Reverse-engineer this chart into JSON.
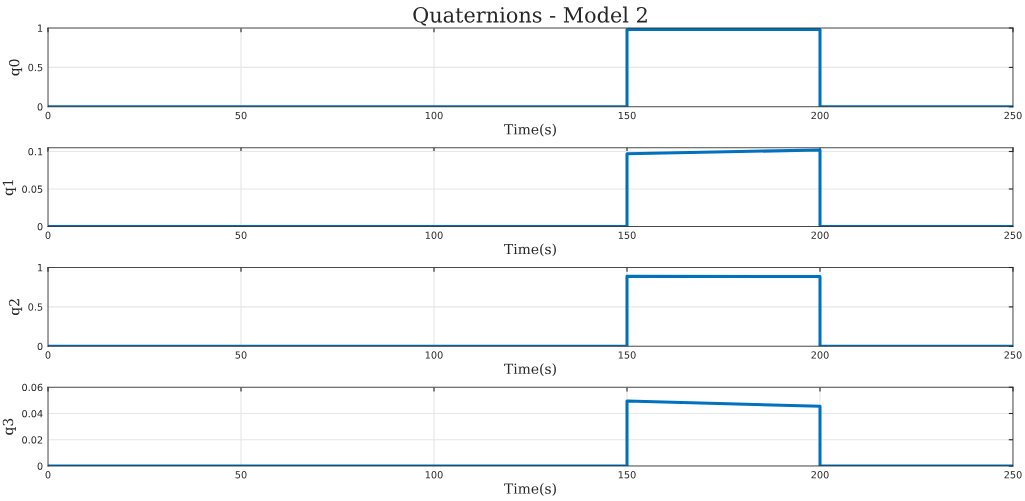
{
  "chart_data": [
    {
      "type": "line",
      "title": "Quaternions - Model 2",
      "xlabel": "Time(s)",
      "ylabel": "q0",
      "x": [
        0,
        150,
        150,
        200,
        200,
        250
      ],
      "series": [
        {
          "color": "#0072bd",
          "values": [
            0,
            0,
            0.98,
            0.98,
            0,
            0
          ]
        }
      ],
      "xlim": [
        0,
        250
      ],
      "xticks": [
        0,
        50,
        100,
        150,
        200,
        250
      ],
      "ylim": [
        0,
        1
      ],
      "yticks": [
        0,
        0.5,
        1
      ],
      "grid": true,
      "legend": false,
      "marker": "none",
      "line_style": "solid"
    },
    {
      "type": "line",
      "xlabel": "Time(s)",
      "ylabel": "q1",
      "x": [
        0,
        150,
        150,
        200,
        200,
        250
      ],
      "series": [
        {
          "color": "#0072bd",
          "values": [
            0,
            0,
            0.097,
            0.102,
            0,
            0
          ]
        }
      ],
      "xlim": [
        0,
        250
      ],
      "xticks": [
        0,
        50,
        100,
        150,
        200,
        250
      ],
      "ylim": [
        0,
        0.105
      ],
      "yticks": [
        0,
        0.05,
        0.1
      ],
      "grid": true,
      "legend": false,
      "marker": "none",
      "line_style": "solid"
    },
    {
      "type": "line",
      "xlabel": "Time(s)",
      "ylabel": "q2",
      "x": [
        0,
        150,
        150,
        200,
        200,
        250
      ],
      "series": [
        {
          "color": "#0072bd",
          "values": [
            0,
            0,
            0.89,
            0.885,
            0,
            0
          ]
        }
      ],
      "xlim": [
        0,
        250
      ],
      "xticks": [
        0,
        50,
        100,
        150,
        200,
        250
      ],
      "ylim": [
        0,
        1
      ],
      "yticks": [
        0,
        0.5,
        1
      ],
      "grid": true,
      "legend": false,
      "marker": "none",
      "line_style": "solid"
    },
    {
      "type": "line",
      "xlabel": "Time(s)",
      "ylabel": "q3",
      "x": [
        0,
        150,
        150,
        200,
        200,
        250
      ],
      "series": [
        {
          "color": "#0072bd",
          "values": [
            0,
            0,
            0.0495,
            0.0455,
            0,
            0
          ]
        }
      ],
      "xlim": [
        0,
        250
      ],
      "xticks": [
        0,
        50,
        100,
        150,
        200,
        250
      ],
      "ylim": [
        0,
        0.06
      ],
      "yticks": [
        0,
        0.02,
        0.04,
        0.06
      ],
      "grid": true,
      "legend": false,
      "marker": "none",
      "line_style": "solid"
    }
  ]
}
